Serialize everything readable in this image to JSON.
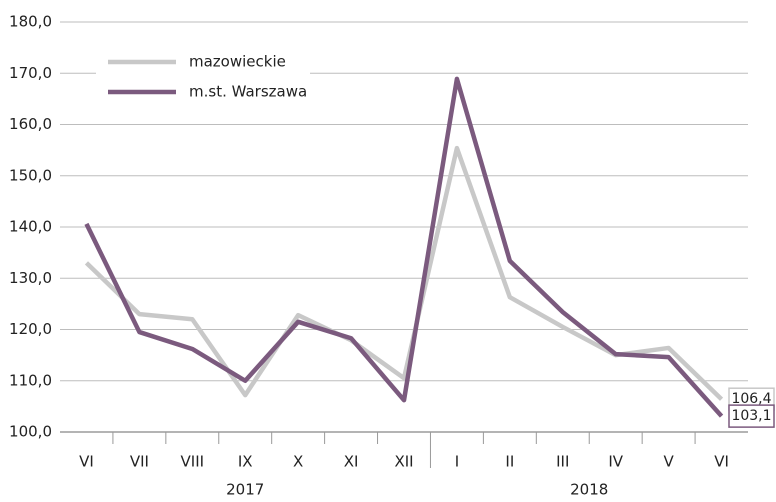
{
  "chart_data": {
    "type": "line",
    "category_groups": [
      {
        "label": "2017",
        "categories": [
          "VI",
          "VII",
          "VIII",
          "IX",
          "X",
          "XI",
          "XII"
        ]
      },
      {
        "label": "2018",
        "categories": [
          "I",
          "II",
          "III",
          "IV",
          "V",
          "VI"
        ]
      }
    ],
    "series": [
      {
        "name": "mazowieckie",
        "color": "#c8c8c8",
        "values": [
          133.0,
          123.0,
          122.0,
          107.2,
          122.8,
          117.9,
          110.5,
          155.4,
          126.3,
          120.5,
          115.0,
          116.4,
          106.4
        ],
        "value_labels": [
          null,
          null,
          null,
          null,
          null,
          null,
          null,
          null,
          null,
          null,
          null,
          null,
          "106,4"
        ]
      },
      {
        "name": "m.st. Warszawa",
        "color": "#7b5a7e",
        "values": [
          140.6,
          119.5,
          116.2,
          110.0,
          121.5,
          118.3,
          106.2,
          168.9,
          133.4,
          123.4,
          115.2,
          114.6,
          103.1
        ],
        "value_labels": [
          null,
          null,
          null,
          null,
          null,
          null,
          null,
          null,
          null,
          null,
          null,
          null,
          "103,1"
        ]
      }
    ],
    "ylim": [
      100,
      180
    ],
    "yticks": [
      {
        "value": 100,
        "label": "100,0"
      },
      {
        "value": 110,
        "label": "110,0"
      },
      {
        "value": 120,
        "label": "120,0"
      },
      {
        "value": 130,
        "label": "130,0"
      },
      {
        "value": 140,
        "label": "140,0"
      },
      {
        "value": 150,
        "label": "150,0"
      },
      {
        "value": 160,
        "label": "160,0"
      },
      {
        "value": 170,
        "label": "170,0"
      },
      {
        "value": 180,
        "label": "180,0"
      }
    ],
    "grid": true,
    "legend": "upper left"
  }
}
